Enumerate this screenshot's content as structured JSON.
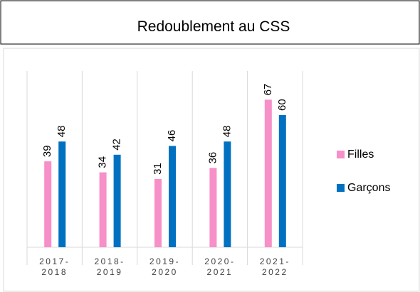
{
  "chart_data": {
    "type": "bar",
    "title": "Redoublement au CSS",
    "categories": [
      "2017-2018",
      "2018-2019",
      "2019-2020",
      "2020-2021",
      "2021-2022"
    ],
    "series": [
      {
        "name": "Filles",
        "color": "#f78fc8",
        "values": [
          39,
          34,
          31,
          36,
          67
        ]
      },
      {
        "name": "Garçons",
        "color": "#0070c0",
        "values": [
          48,
          42,
          46,
          48,
          60
        ]
      }
    ],
    "ylim": [
      0,
      80
    ],
    "legend": "right"
  }
}
